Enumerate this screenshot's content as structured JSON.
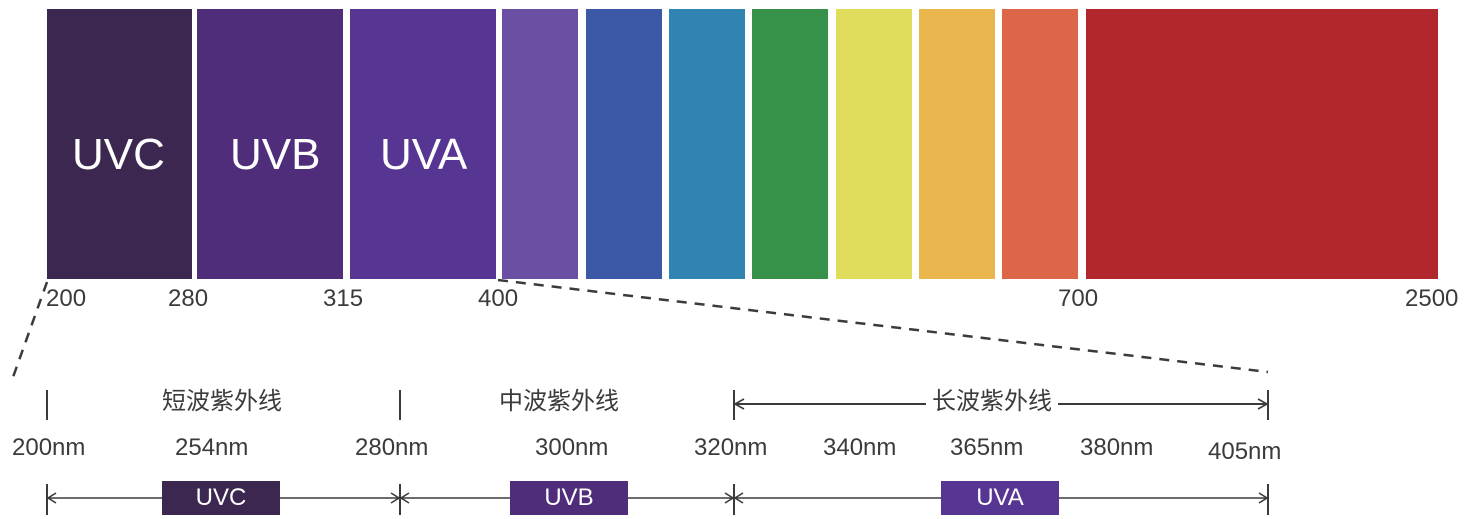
{
  "spectrum": {
    "bands": [
      {
        "label": "UVC",
        "color": "#3c2751"
      },
      {
        "label": "UVB",
        "color": "#4f2d7a"
      },
      {
        "label": "UVA",
        "color": "#573593"
      },
      {
        "label": "",
        "color": "#6a4fa2"
      },
      {
        "label": "",
        "color": "#3b59a6"
      },
      {
        "label": "",
        "color": "#2f84b1"
      },
      {
        "label": "",
        "color": "#36914a"
      },
      {
        "label": "",
        "color": "#dfdc5e"
      },
      {
        "label": "",
        "color": "#e9b64e"
      },
      {
        "label": "",
        "color": "#dc6647"
      },
      {
        "label": "",
        "color": "#b2262e"
      }
    ],
    "ticks": [
      "200",
      "280",
      "315",
      "400",
      "700",
      "2500"
    ]
  },
  "detail": {
    "zones": [
      "短波紫外线",
      "中波紫外线",
      "长波紫外线"
    ],
    "wavelengths": [
      "200nm",
      "254nm",
      "280nm",
      "300nm",
      "320nm",
      "340nm",
      "365nm",
      "380nm",
      "405nm"
    ],
    "pills": [
      {
        "label": "UVC",
        "color": "#3c2751"
      },
      {
        "label": "UVB",
        "color": "#4f2d7a"
      },
      {
        "label": "UVA",
        "color": "#573593"
      }
    ]
  }
}
